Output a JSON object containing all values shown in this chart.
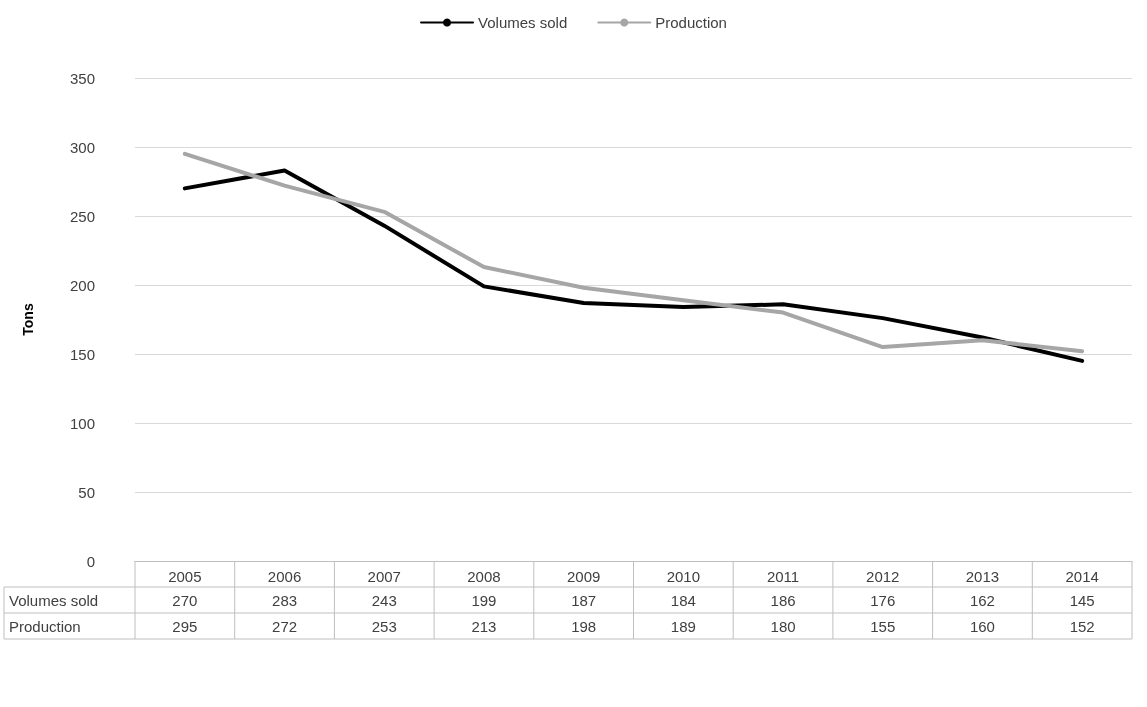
{
  "chart_data": {
    "type": "line",
    "ylabel": "Tons",
    "categories": [
      "2005",
      "2006",
      "2007",
      "2008",
      "2009",
      "2010",
      "2011",
      "2012",
      "2013",
      "2014"
    ],
    "series": [
      {
        "name": "Volumes sold",
        "color": "#000000",
        "values": [
          270,
          283,
          243,
          199,
          187,
          184,
          186,
          176,
          162,
          145
        ]
      },
      {
        "name": "Production",
        "color": "#a6a6a6",
        "values": [
          295,
          272,
          253,
          213,
          198,
          189,
          180,
          155,
          160,
          152
        ]
      }
    ],
    "ylim": [
      0,
      350
    ],
    "yticks": [
      0,
      50,
      100,
      150,
      200,
      250,
      300,
      350
    ],
    "grid": "y",
    "legend": "top",
    "marker": "none",
    "line_style": "solid",
    "data_labels": true
  }
}
